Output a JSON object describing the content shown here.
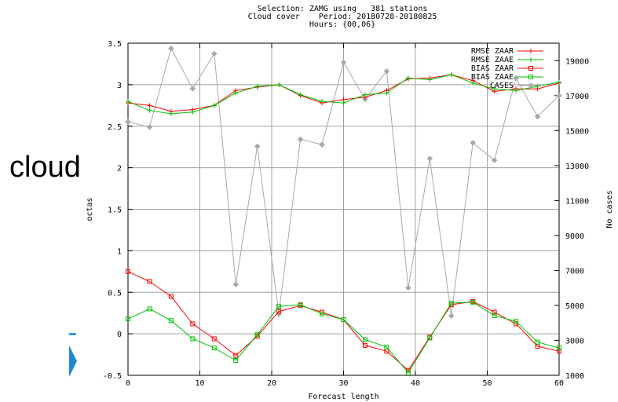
{
  "side_word": "cloud",
  "chart_data": {
    "type": "line",
    "title_lines": [
      "Selection: ZAMG using   381 stations",
      "Cloud cover    Period: 20180728-20180825",
      "Hours: {00,06}"
    ],
    "xlabel": "Forecast length",
    "ylabel": "octas",
    "y2label": "No cases",
    "xlim": [
      0,
      60
    ],
    "ylim": [
      -0.5,
      3.5
    ],
    "y2lim": [
      1000,
      20000
    ],
    "xticks": [
      0,
      10,
      20,
      30,
      40,
      50,
      60
    ],
    "yticks": [
      -0.5,
      0,
      0.5,
      1,
      1.5,
      2,
      2.5,
      3,
      3.5
    ],
    "ytick_labels": [
      "-0.5",
      "0",
      "0.5",
      "1",
      "1.5",
      "2",
      "2.5",
      "3",
      "3.5"
    ],
    "y2ticks": [
      1000,
      3000,
      5000,
      7000,
      9000,
      11000,
      13000,
      15000,
      17000,
      19000
    ],
    "grid": true,
    "legend_position": "top-right",
    "x": [
      0,
      3,
      6,
      9,
      12,
      15,
      18,
      21,
      24,
      27,
      30,
      33,
      36,
      39,
      42,
      45,
      48,
      51,
      54,
      57,
      60
    ],
    "series": [
      {
        "name": "RMSE ZAAR",
        "axis": "left",
        "color": "#ff0000",
        "marker": "plus",
        "values": [
          2.78,
          2.75,
          2.68,
          2.7,
          2.75,
          2.93,
          2.97,
          3.0,
          2.87,
          2.78,
          2.82,
          2.85,
          2.93,
          3.07,
          3.08,
          3.12,
          3.05,
          2.92,
          2.95,
          2.95,
          3.02
        ]
      },
      {
        "name": "RMSE ZAAE",
        "axis": "left",
        "color": "#00c000",
        "marker": "plus",
        "values": [
          2.8,
          2.69,
          2.65,
          2.67,
          2.75,
          2.9,
          2.98,
          3.0,
          2.88,
          2.8,
          2.78,
          2.88,
          2.9,
          3.08,
          3.06,
          3.12,
          3.02,
          2.95,
          2.93,
          2.98,
          3.03
        ]
      },
      {
        "name": "BIAS ZAAR",
        "axis": "left",
        "color": "#ff0000",
        "marker": "square",
        "values": [
          0.75,
          0.63,
          0.45,
          0.12,
          -0.06,
          -0.26,
          -0.03,
          0.27,
          0.34,
          0.26,
          0.17,
          -0.14,
          -0.21,
          -0.44,
          -0.04,
          0.35,
          0.39,
          0.26,
          0.12,
          -0.15,
          -0.21
        ]
      },
      {
        "name": "BIAS ZAAE",
        "axis": "left",
        "color": "#00c000",
        "marker": "square",
        "values": [
          0.18,
          0.3,
          0.16,
          -0.06,
          -0.17,
          -0.32,
          -0.01,
          0.33,
          0.35,
          0.24,
          0.17,
          -0.07,
          -0.16,
          -0.47,
          -0.05,
          0.37,
          0.38,
          0.22,
          0.15,
          -0.1,
          -0.17
        ]
      },
      {
        "name": "CASES",
        "axis": "right",
        "color": "#a8a8a8",
        "marker": "diamond",
        "values": [
          15500,
          15200,
          19700,
          17400,
          19400,
          6200,
          14100,
          4500,
          14500,
          14200,
          18900,
          16800,
          18400,
          6000,
          13400,
          4400,
          14300,
          13300,
          18000,
          15800,
          17000
        ]
      }
    ]
  }
}
